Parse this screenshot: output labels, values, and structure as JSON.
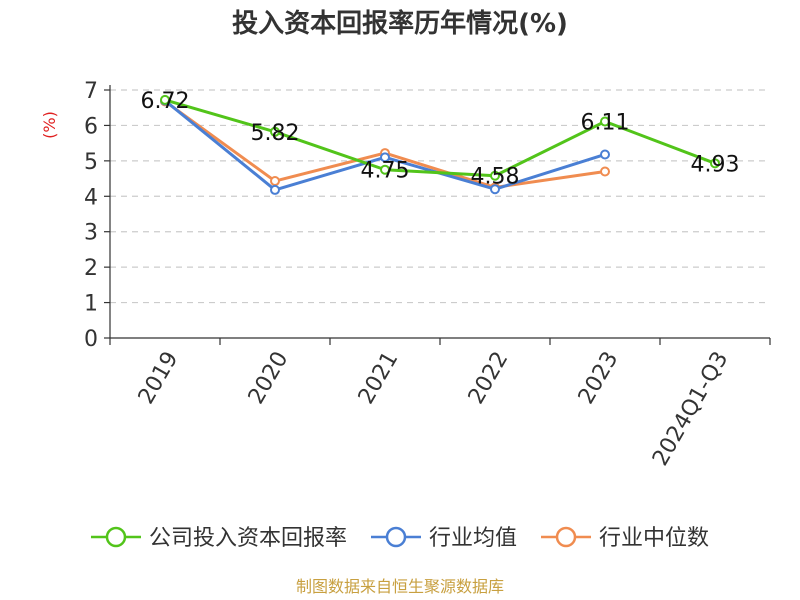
{
  "chart_data": {
    "type": "line",
    "title": "投入资本回报率历年情况(%)",
    "ylabel": "(%)",
    "categories": [
      "2019",
      "2020",
      "2021",
      "2022",
      "2023",
      "2024Q1-Q3"
    ],
    "ylim": [
      0,
      7
    ],
    "yticks": [
      0,
      1,
      2,
      3,
      4,
      5,
      6,
      7
    ],
    "grid": true,
    "legend_position": "bottom",
    "series": [
      {
        "name": "公司投入资本回报率",
        "color": "#52c41a",
        "values": [
          6.72,
          5.82,
          4.75,
          4.58,
          6.11,
          4.93
        ],
        "show_labels": true
      },
      {
        "name": "行业均值",
        "color": "#4a7fd4",
        "values": [
          6.7,
          4.18,
          5.1,
          4.2,
          5.18,
          null
        ],
        "show_labels": false
      },
      {
        "name": "行业中位数",
        "color": "#f08c50",
        "values": [
          6.68,
          4.43,
          5.22,
          4.25,
          4.7,
          null
        ],
        "show_labels": false
      }
    ],
    "source": "制图数据来自恒生聚源数据库"
  }
}
